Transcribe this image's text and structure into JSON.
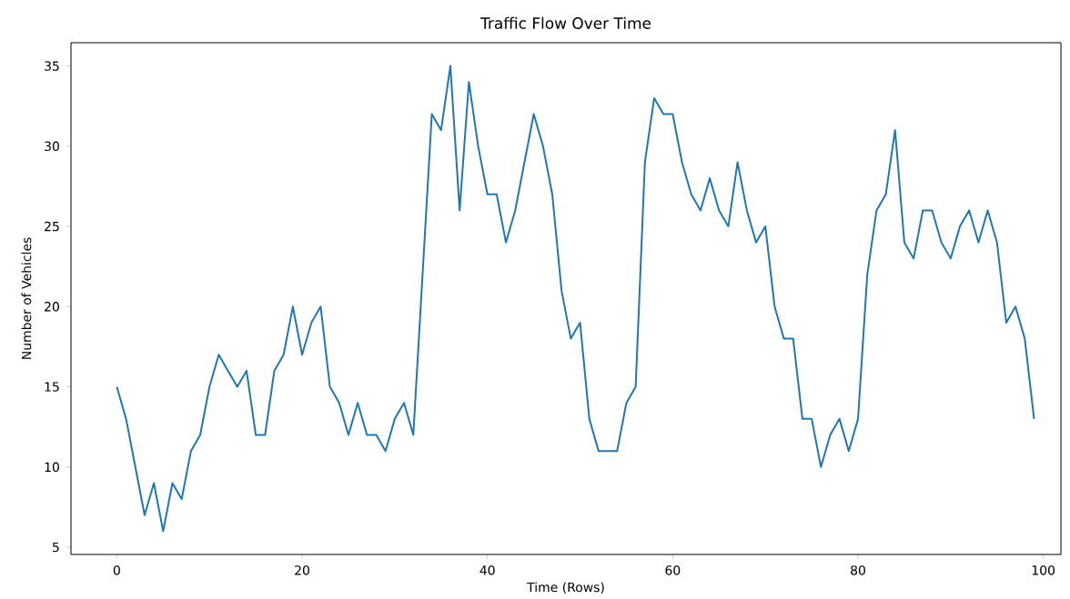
{
  "chart_data": {
    "type": "line",
    "title": "Traffic Flow Over Time",
    "xlabel": "Time (Rows)",
    "ylabel": "Number of Vehicles",
    "x": [
      0,
      1,
      2,
      3,
      4,
      5,
      6,
      7,
      8,
      9,
      10,
      11,
      12,
      13,
      14,
      15,
      16,
      17,
      18,
      19,
      20,
      21,
      22,
      23,
      24,
      25,
      26,
      27,
      28,
      29,
      30,
      31,
      32,
      33,
      34,
      35,
      36,
      37,
      38,
      39,
      40,
      41,
      42,
      43,
      44,
      45,
      46,
      47,
      48,
      49,
      50,
      51,
      52,
      53,
      54,
      55,
      56,
      57,
      58,
      59,
      60,
      61,
      62,
      63,
      64,
      65,
      66,
      67,
      68,
      69,
      70,
      71,
      72,
      73,
      74,
      75,
      76,
      77,
      78,
      79,
      80,
      81,
      82,
      83,
      84,
      85,
      86,
      87,
      88,
      89,
      90,
      91,
      92,
      93,
      94,
      95,
      96,
      97,
      98,
      99
    ],
    "series": [
      {
        "color": "#1f77b4",
        "values": [
          15,
          13,
          10,
          7,
          9,
          6,
          9,
          8,
          11,
          12,
          15,
          17,
          16,
          15,
          16,
          12,
          12,
          16,
          17,
          20,
          17,
          19,
          20,
          15,
          14,
          12,
          14,
          12,
          12,
          11,
          13,
          14,
          12,
          22,
          32,
          31,
          35,
          26,
          34,
          30,
          27,
          27,
          24,
          26,
          29,
          32,
          30,
          27,
          21,
          18,
          19,
          13,
          11,
          11,
          11,
          14,
          15,
          29,
          33,
          32,
          32,
          29,
          27,
          26,
          28,
          26,
          25,
          29,
          26,
          24,
          25,
          20,
          18,
          18,
          13,
          13,
          10,
          12,
          13,
          11,
          13,
          22,
          26,
          27,
          31,
          24,
          23,
          26,
          26,
          24,
          23,
          25,
          26,
          24,
          26,
          24,
          19,
          20,
          18,
          13
        ]
      }
    ],
    "xlim": [
      -4.95,
      101.9
    ],
    "ylim": [
      4.55,
      36.45
    ],
    "xticks": [
      0,
      20,
      40,
      60,
      80,
      100
    ],
    "yticks": [
      5,
      10,
      15,
      20,
      25,
      30,
      35
    ],
    "grid": false,
    "marker": "none",
    "line_style": "solid"
  }
}
